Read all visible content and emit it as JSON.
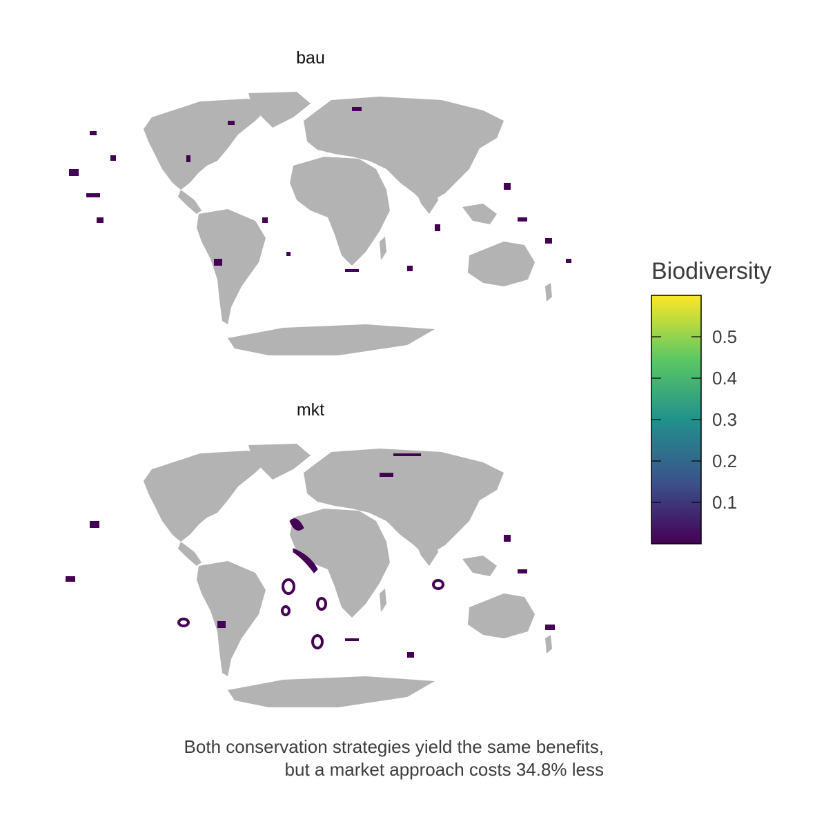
{
  "panels": [
    {
      "title": "bau"
    },
    {
      "title": "mkt"
    }
  ],
  "legend": {
    "title": "Biodiversity",
    "ticks": [
      {
        "label": "0.5",
        "value": 0.5
      },
      {
        "label": "0.4",
        "value": 0.4
      },
      {
        "label": "0.3",
        "value": 0.3
      },
      {
        "label": "0.2",
        "value": 0.2
      },
      {
        "label": "0.1",
        "value": 0.1
      }
    ],
    "range": [
      0.0,
      0.6
    ],
    "palette": "viridis",
    "colors": [
      "#440154",
      "#3b528b",
      "#21918c",
      "#5ec962",
      "#fde725"
    ]
  },
  "colors": {
    "land": "#b3b3b3",
    "protected_area": "#440154",
    "background": "#ffffff"
  },
  "caption": {
    "line1": "Both conservation strategies yield the same benefits,",
    "line2": "but a market approach costs 34.8% less"
  }
}
